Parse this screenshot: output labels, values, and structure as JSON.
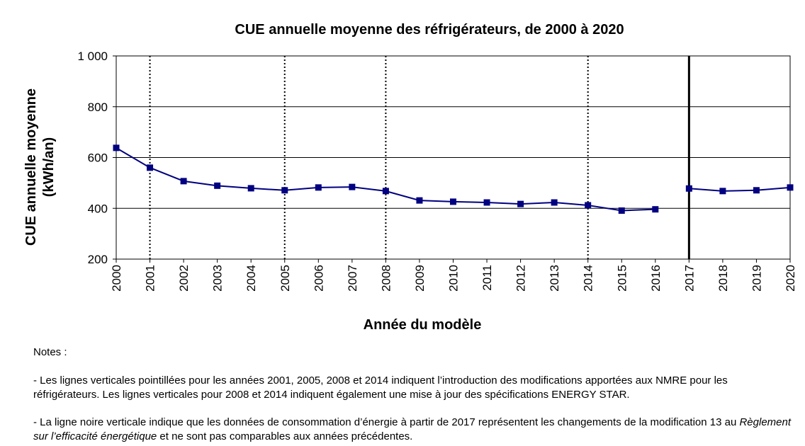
{
  "chart_data": {
    "type": "line",
    "title": "CUE annuelle moyenne des réfrigérateurs, de 2000 à 2020",
    "xlabel": "Année du modèle",
    "ylabel_lines": [
      "CUE annuelle moyenne",
      "(kWh/an)"
    ],
    "ylim": [
      200,
      1000
    ],
    "yticks": [
      200,
      400,
      600,
      800,
      1000
    ],
    "ytick_labels": [
      "200",
      "400",
      "600",
      "800",
      "1 000"
    ],
    "categories": [
      "2000",
      "2001",
      "2002",
      "2003",
      "2004",
      "2005",
      "2006",
      "2007",
      "2008",
      "2009",
      "2010",
      "2011",
      "2012",
      "2013",
      "2014",
      "2015",
      "2016",
      "2017",
      "2018",
      "2019",
      "2020"
    ],
    "series": [
      {
        "segment": "2000-2016",
        "x": [
          "2000",
          "2001",
          "2002",
          "2003",
          "2004",
          "2005",
          "2006",
          "2007",
          "2008",
          "2009",
          "2010",
          "2011",
          "2012",
          "2013",
          "2014",
          "2015",
          "2016"
        ],
        "values": [
          638,
          560,
          507,
          489,
          479,
          471,
          482,
          484,
          468,
          431,
          426,
          423,
          417,
          423,
          412,
          391,
          396
        ]
      },
      {
        "segment": "2017-2020",
        "x": [
          "2017",
          "2018",
          "2019",
          "2020"
        ],
        "values": [
          478,
          468,
          471,
          482
        ]
      }
    ],
    "dotted_vertical_lines": [
      "2001",
      "2005",
      "2008",
      "2014"
    ],
    "solid_vertical_line": "2017",
    "grid": "horizontal",
    "legend": "none",
    "colors": {
      "series": "#000080",
      "grid": "#000000"
    }
  },
  "notes": {
    "heading": "Notes :",
    "note1": "- Les lignes verticales pointillées pour les années 2001, 2005, 2008 et 2014 indiquent l’introduction des modifications apportées aux NMRE pour les réfrigérateurs. Les lignes verticales pour 2008 et 2014 indiquent également une mise à jour des spécifications ENERGY STAR.",
    "note2_before": "- La ligne noire verticale indique que les données de consommation d’énergie à partir de 2017 représentent les changements de la modification 13 au ",
    "note2_italic": "Règlement sur l’efficacité énergétique",
    "note2_after": " et ne sont pas comparables aux années précédentes."
  }
}
